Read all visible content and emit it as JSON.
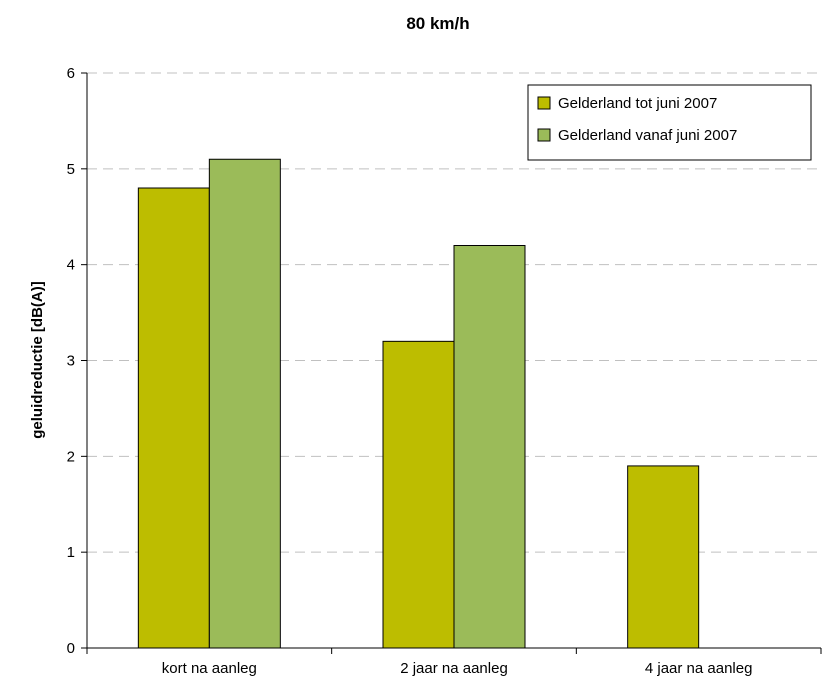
{
  "chart_data": {
    "type": "bar",
    "title": "80 km/h",
    "xlabel": "",
    "ylabel": "geluidreductie [dB(A)]",
    "categories": [
      "kort na aanleg",
      "2 jaar na aanleg",
      "4 jaar na aanleg"
    ],
    "series": [
      {
        "name": "Gelderland tot juni 2007",
        "values": [
          4.8,
          3.2,
          1.9
        ],
        "color": "#BDBD00"
      },
      {
        "name": "Gelderland vanaf juni 2007",
        "values": [
          5.1,
          4.2,
          null
        ],
        "color": "#9BBB59"
      }
    ],
    "ylim": [
      0,
      6
    ],
    "yticks": [
      "0",
      "1",
      "2",
      "3",
      "4",
      "5",
      "6"
    ],
    "grid": true,
    "legend_position": "top-right"
  }
}
